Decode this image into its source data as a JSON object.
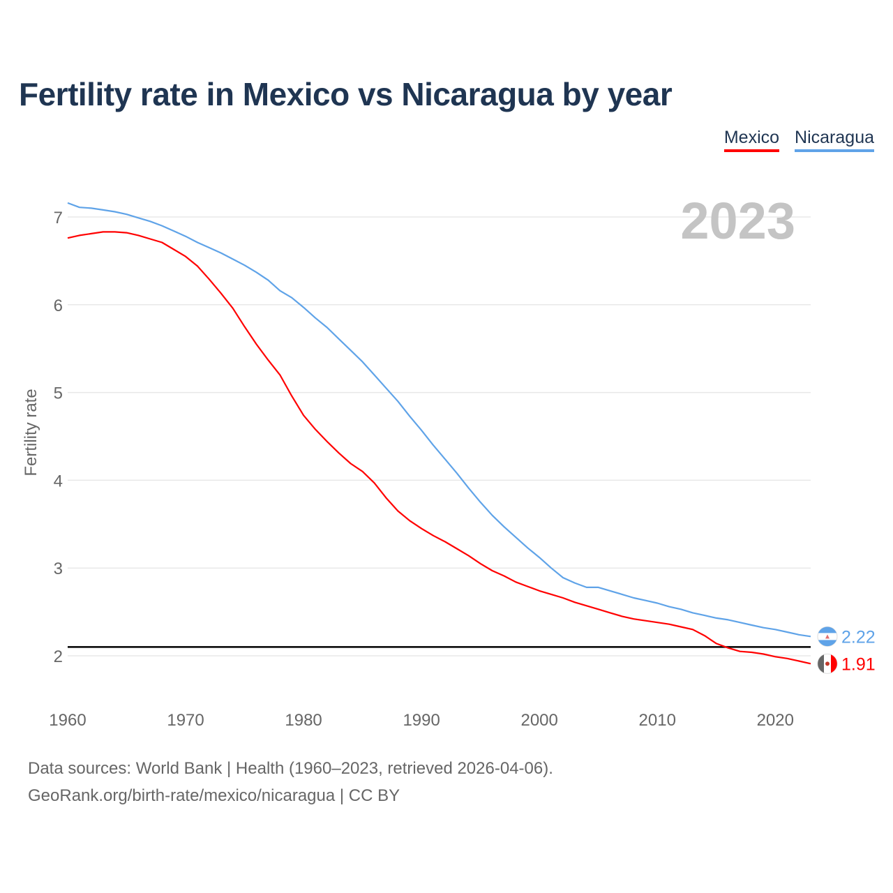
{
  "chart_data": {
    "type": "line",
    "title": "Fertility rate in Mexico vs Nicaragua by year",
    "xlabel": "",
    "ylabel": "Fertility rate",
    "xlim": [
      1960,
      2023
    ],
    "ylim": [
      1.5,
      7.3
    ],
    "x_ticks": [
      1960,
      1970,
      1980,
      1990,
      2000,
      2010,
      2020
    ],
    "y_ticks": [
      2,
      3,
      4,
      5,
      6,
      7
    ],
    "grid": true,
    "legend_position": "top-right",
    "year_label": "2023",
    "reference_line": {
      "value": 2.1,
      "color": "#000000"
    },
    "x": [
      1960,
      1961,
      1962,
      1963,
      1964,
      1965,
      1966,
      1967,
      1968,
      1969,
      1970,
      1971,
      1972,
      1973,
      1974,
      1975,
      1976,
      1977,
      1978,
      1979,
      1980,
      1981,
      1982,
      1983,
      1984,
      1985,
      1986,
      1987,
      1988,
      1989,
      1990,
      1991,
      1992,
      1993,
      1994,
      1995,
      1996,
      1997,
      1998,
      1999,
      2000,
      2001,
      2002,
      2003,
      2004,
      2005,
      2006,
      2007,
      2008,
      2009,
      2010,
      2011,
      2012,
      2013,
      2014,
      2015,
      2016,
      2017,
      2018,
      2019,
      2020,
      2021,
      2022,
      2023
    ],
    "series": [
      {
        "name": "Mexico",
        "color": "#ff0000",
        "end_label": "1.91",
        "values": [
          6.76,
          6.79,
          6.81,
          6.83,
          6.83,
          6.82,
          6.79,
          6.75,
          6.71,
          6.63,
          6.55,
          6.44,
          6.29,
          6.13,
          5.96,
          5.75,
          5.55,
          5.37,
          5.2,
          4.96,
          4.74,
          4.58,
          4.44,
          4.31,
          4.19,
          4.1,
          3.97,
          3.8,
          3.65,
          3.54,
          3.45,
          3.37,
          3.3,
          3.22,
          3.14,
          3.05,
          2.97,
          2.91,
          2.84,
          2.79,
          2.74,
          2.7,
          2.66,
          2.61,
          2.57,
          2.53,
          2.49,
          2.45,
          2.42,
          2.4,
          2.38,
          2.36,
          2.33,
          2.3,
          2.23,
          2.14,
          2.09,
          2.05,
          2.04,
          2.02,
          1.99,
          1.97,
          1.94,
          1.91
        ]
      },
      {
        "name": "Nicaragua",
        "color": "#5fa3e8",
        "end_label": "2.22",
        "values": [
          7.16,
          7.11,
          7.1,
          7.08,
          7.06,
          7.03,
          6.99,
          6.95,
          6.9,
          6.84,
          6.78,
          6.71,
          6.65,
          6.59,
          6.52,
          6.45,
          6.37,
          6.28,
          6.16,
          6.08,
          5.97,
          5.85,
          5.74,
          5.61,
          5.48,
          5.35,
          5.2,
          5.05,
          4.9,
          4.73,
          4.57,
          4.4,
          4.24,
          4.08,
          3.91,
          3.75,
          3.6,
          3.47,
          3.35,
          3.23,
          3.12,
          3.0,
          2.89,
          2.83,
          2.78,
          2.78,
          2.74,
          2.7,
          2.66,
          2.63,
          2.6,
          2.56,
          2.53,
          2.49,
          2.46,
          2.43,
          2.41,
          2.38,
          2.35,
          2.32,
          2.3,
          2.27,
          2.24,
          2.22
        ]
      }
    ]
  },
  "footer": {
    "sources": "Data sources: World Bank | Health (1960–2023, retrieved 2026-04-06).",
    "link": "GeoRank.org/birth-rate/mexico/nicaragua | CC BY"
  }
}
